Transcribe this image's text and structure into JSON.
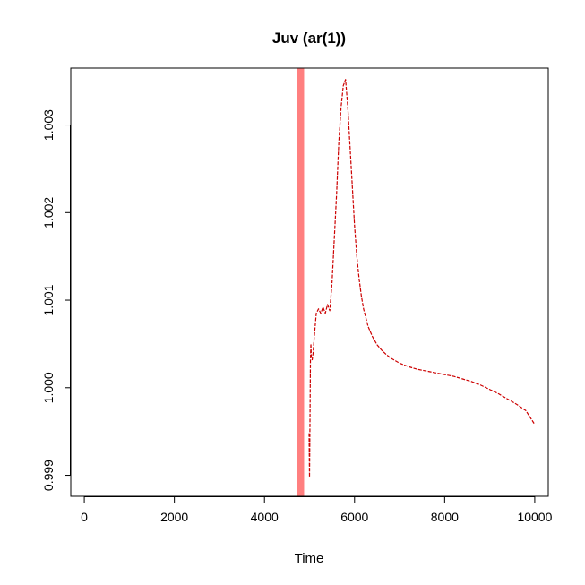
{
  "chart_data": {
    "type": "line",
    "title": "Juv (ar(1))",
    "xlabel": "Time",
    "ylabel": "",
    "xlim": [
      -300,
      10300
    ],
    "ylim": [
      0.99876,
      1.00365
    ],
    "x_ticks": [
      0,
      2000,
      4000,
      6000,
      8000,
      10000
    ],
    "x_tick_labels": [
      "0",
      "2000",
      "4000",
      "6000",
      "8000",
      "10000"
    ],
    "y_ticks": [
      0.999,
      1.0,
      1.001,
      1.002,
      1.003
    ],
    "y_tick_labels": [
      "0.999",
      "1.000",
      "1.001",
      "1.002",
      "1.003"
    ],
    "grid": false,
    "legend": "none",
    "highlight_band": {
      "x_start": 4730,
      "x_end": 4880,
      "color": "#ff7f7f"
    },
    "series": [
      {
        "color": "#cc0000",
        "style": "dashed",
        "x": [
          4990,
          5000,
          5010,
          5020,
          5030,
          5040,
          5060,
          5080,
          5100,
          5150,
          5200,
          5250,
          5300,
          5350,
          5400,
          5450,
          5500,
          5550,
          5600,
          5650,
          5700,
          5750,
          5800,
          5850,
          5900,
          5950,
          6000,
          6050,
          6100,
          6150,
          6200,
          6300,
          6400,
          6500,
          6600,
          6700,
          6800,
          6900,
          7000,
          7200,
          7400,
          7600,
          7800,
          8000,
          8200,
          8400,
          8600,
          8800,
          9000,
          9200,
          9400,
          9600,
          9800,
          10000
        ],
        "y": [
          0.99948,
          0.99898,
          0.9996,
          1.0003,
          1.0005,
          1.00035,
          1.00032,
          1.0004,
          1.00055,
          1.00085,
          1.0009,
          1.00085,
          1.00092,
          1.00085,
          1.00095,
          1.00088,
          1.0012,
          1.0017,
          1.0022,
          1.0028,
          1.0032,
          1.00345,
          1.00352,
          1.0032,
          1.00275,
          1.0023,
          1.00185,
          1.0015,
          1.00125,
          1.00105,
          1.0009,
          1.0007,
          1.00058,
          1.00049,
          1.00043,
          1.00038,
          1.00034,
          1.00031,
          1.00028,
          1.00024,
          1.00021,
          1.00019,
          1.00017,
          1.00015,
          1.00013,
          1.0001,
          1.00007,
          1.00003,
          0.99998,
          0.99993,
          0.99987,
          0.99981,
          0.99974,
          0.99958
        ]
      }
    ]
  }
}
